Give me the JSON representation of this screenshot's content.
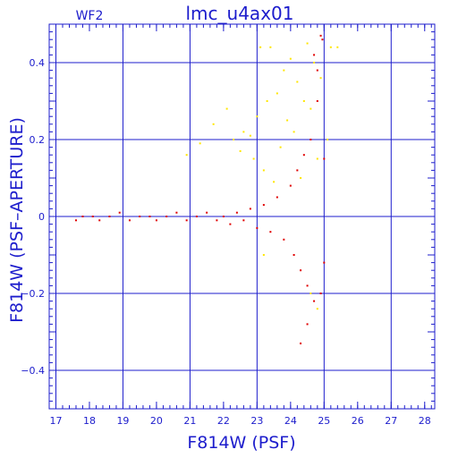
{
  "chart_data": {
    "type": "scatter",
    "title": "lmc_u4ax01",
    "corner_label": "WF2",
    "xlabel": "F814W (PSF)",
    "ylabel": "F814W (PSF–APERTURE)",
    "xlim": [
      16.8,
      28.3
    ],
    "ylim": [
      -0.5,
      0.5
    ],
    "x_ticks": [
      17,
      18,
      19,
      20,
      21,
      22,
      23,
      24,
      25,
      26,
      27,
      28
    ],
    "x_tick_labels": [
      "17",
      "18",
      "19",
      "20",
      "21",
      "22",
      "23",
      "24",
      "25",
      "26",
      "27",
      "28"
    ],
    "y_ticks": [
      -0.4,
      -0.2,
      0,
      0.2,
      0.4
    ],
    "y_tick_labels": [
      "−0.4",
      "−0.2",
      "0",
      "0.2",
      "0.4"
    ],
    "grid": true,
    "colors": {
      "axes": "#1c1ccc",
      "grid": "#1c1ccc",
      "series_main": "#e00000",
      "series_secondary": "#ffe600"
    },
    "series": [
      {
        "color": "#ffe600",
        "points": [
          [
            20.9,
            0.16
          ],
          [
            21.3,
            0.19
          ],
          [
            21.7,
            0.24
          ],
          [
            22.1,
            0.28
          ],
          [
            22.3,
            0.2
          ],
          [
            22.5,
            0.17
          ],
          [
            22.6,
            0.22
          ],
          [
            22.8,
            0.21
          ],
          [
            22.9,
            0.15
          ],
          [
            23.0,
            0.26
          ],
          [
            23.1,
            0.44
          ],
          [
            23.2,
            0.12
          ],
          [
            23.3,
            0.3
          ],
          [
            23.4,
            0.44
          ],
          [
            23.5,
            0.09
          ],
          [
            23.6,
            0.32
          ],
          [
            23.7,
            0.18
          ],
          [
            23.8,
            0.38
          ],
          [
            23.9,
            0.25
          ],
          [
            24.0,
            0.41
          ],
          [
            24.1,
            0.22
          ],
          [
            24.2,
            0.35
          ],
          [
            24.3,
            0.1
          ],
          [
            24.4,
            0.3
          ],
          [
            24.5,
            0.45
          ],
          [
            24.6,
            0.28
          ],
          [
            24.7,
            0.4
          ],
          [
            24.8,
            0.15
          ],
          [
            24.9,
            0.36
          ],
          [
            25.1,
            0.2
          ],
          [
            25.2,
            0.44
          ],
          [
            25.4,
            0.44
          ],
          [
            24.6,
            -0.2
          ],
          [
            24.8,
            -0.24
          ],
          [
            23.2,
            -0.1
          ]
        ]
      },
      {
        "color": "#e00000",
        "points": [
          [
            17.6,
            -0.01
          ],
          [
            17.8,
            0.0
          ],
          [
            18.1,
            0.0
          ],
          [
            18.3,
            -0.01
          ],
          [
            18.6,
            0.0
          ],
          [
            18.9,
            0.01
          ],
          [
            19.2,
            -0.01
          ],
          [
            19.5,
            0.0
          ],
          [
            19.8,
            0.0
          ],
          [
            20.0,
            -0.01
          ],
          [
            20.3,
            0.0
          ],
          [
            20.6,
            0.01
          ],
          [
            20.9,
            -0.01
          ],
          [
            21.2,
            0.0
          ],
          [
            21.5,
            0.01
          ],
          [
            21.8,
            -0.01
          ],
          [
            22.0,
            0.0
          ],
          [
            22.2,
            -0.02
          ],
          [
            22.4,
            0.01
          ],
          [
            22.6,
            -0.01
          ],
          [
            22.8,
            0.02
          ],
          [
            23.0,
            -0.03
          ],
          [
            23.2,
            0.03
          ],
          [
            23.4,
            -0.04
          ],
          [
            23.6,
            0.05
          ],
          [
            23.8,
            -0.06
          ],
          [
            24.0,
            0.08
          ],
          [
            24.1,
            -0.1
          ],
          [
            24.2,
            0.12
          ],
          [
            24.3,
            -0.14
          ],
          [
            24.4,
            0.16
          ],
          [
            24.5,
            -0.18
          ],
          [
            24.6,
            0.2
          ],
          [
            24.7,
            -0.22
          ],
          [
            24.8,
            0.3
          ],
          [
            24.3,
            -0.33
          ],
          [
            24.5,
            -0.28
          ],
          [
            24.9,
            0.47
          ],
          [
            24.95,
            0.46
          ],
          [
            24.7,
            0.42
          ],
          [
            24.8,
            0.38
          ],
          [
            24.9,
            -0.2
          ],
          [
            25.0,
            0.15
          ],
          [
            25.0,
            -0.12
          ]
        ]
      }
    ]
  }
}
